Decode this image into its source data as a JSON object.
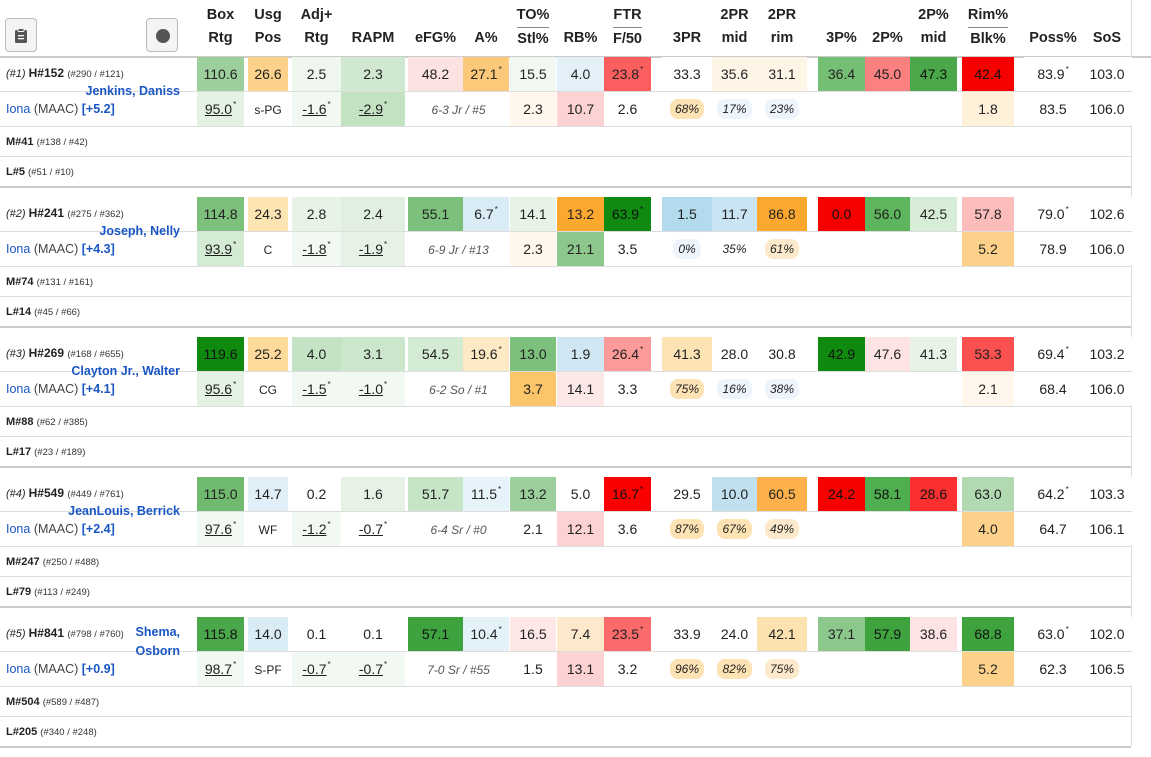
{
  "toolbar": {
    "clipboard_icon": "clipboard-icon",
    "record_icon": "record-icon"
  },
  "headers": [
    {
      "top": "Box",
      "bottom": "Rtg"
    },
    {
      "top": "Usg",
      "bottom": "Pos"
    },
    {
      "top": "Adj+",
      "bottom": "Rtg"
    },
    {
      "top": "",
      "bottom": "RAPM"
    },
    {
      "top": "",
      "bottom": "eFG%"
    },
    {
      "top": "",
      "bottom": "A%"
    },
    {
      "top": "TO%",
      "bottom": "Stl%"
    },
    {
      "top": "",
      "bottom": "RB%"
    },
    {
      "top": "FTR",
      "bottom": "F/50"
    },
    {
      "top": "",
      "bottom": "3PR"
    },
    {
      "top": "2PR",
      "bottom": "mid"
    },
    {
      "top": "2PR",
      "bottom": "rim"
    },
    {
      "top": "",
      "bottom": "3P%"
    },
    {
      "top": "",
      "bottom": "2P%"
    },
    {
      "top": "2P%",
      "bottom": "mid"
    },
    {
      "top": "Rim%",
      "bottom": "Blk%"
    },
    {
      "top": "",
      "bottom": "Poss%"
    },
    {
      "top": "",
      "bottom": "SoS"
    }
  ],
  "players": [
    {
      "rank": "(#1)",
      "hrank": "H#152",
      "hsub": "(#290 / #121)",
      "name": "Jenkins, Daniss",
      "team": "Iona",
      "conf": "(MAAC)",
      "plus": "[+5.2]",
      "m": "M#41",
      "msub": "(#138 / #42)",
      "l": "L#5",
      "lsub": "(#51 / #10)",
      "r1": [
        "110.6",
        "26.6",
        "2.5",
        "2.3",
        "48.2",
        "27.1",
        "15.5",
        "4.0",
        "23.8",
        "33.3",
        "35.6",
        "31.1",
        "36.4",
        "45.0",
        "47.3",
        "42.4",
        "83.9",
        "103.0"
      ],
      "r1star": [
        false,
        false,
        false,
        false,
        false,
        true,
        false,
        false,
        true,
        false,
        false,
        false,
        false,
        false,
        false,
        false,
        true,
        false
      ],
      "r2": [
        "95.0",
        "s-PG",
        "-1.6",
        "-2.9",
        "6-3 Jr / #5",
        "",
        "2.3",
        "10.7",
        "2.6",
        "68%",
        "17%",
        "23%",
        "",
        "",
        "",
        "1.8",
        "83.5",
        "106.0"
      ],
      "r2star": [
        true,
        false,
        true,
        true,
        false,
        false,
        false,
        false,
        false,
        false,
        false,
        false,
        false,
        false,
        false,
        false,
        false,
        false
      ]
    },
    {
      "rank": "(#2)",
      "hrank": "H#241",
      "hsub": "(#275 / #362)",
      "name": "Joseph, Nelly",
      "team": "Iona",
      "conf": "(MAAC)",
      "plus": "[+4.3]",
      "m": "M#74",
      "msub": "(#131 / #161)",
      "l": "L#14",
      "lsub": "(#45 / #66)",
      "r1": [
        "114.8",
        "24.3",
        "2.8",
        "2.4",
        "55.1",
        "6.7",
        "14.1",
        "13.2",
        "63.9",
        "1.5",
        "11.7",
        "86.8",
        "0.0",
        "56.0",
        "42.5",
        "57.8",
        "79.0",
        "102.6"
      ],
      "r1star": [
        false,
        false,
        false,
        false,
        false,
        true,
        false,
        false,
        true,
        false,
        false,
        false,
        false,
        false,
        false,
        false,
        true,
        false
      ],
      "r2": [
        "93.9",
        "C",
        "-1.8",
        "-1.9",
        "6-9 Jr / #13",
        "",
        "2.3",
        "21.1",
        "3.5",
        "0%",
        "35%",
        "61%",
        "",
        "",
        "",
        "5.2",
        "78.9",
        "106.0"
      ],
      "r2star": [
        true,
        false,
        true,
        true,
        false,
        false,
        false,
        false,
        false,
        false,
        false,
        false,
        false,
        false,
        false,
        false,
        false,
        false
      ]
    },
    {
      "rank": "(#3)",
      "hrank": "H#269",
      "hsub": "(#168 / #655)",
      "name": "Clayton Jr., Walter",
      "team": "Iona",
      "conf": "(MAAC)",
      "plus": "[+4.1]",
      "m": "M#88",
      "msub": "(#62 / #385)",
      "l": "L#17",
      "lsub": "(#23 / #189)",
      "r1": [
        "119.6",
        "25.2",
        "4.0",
        "3.1",
        "54.5",
        "19.6",
        "13.0",
        "1.9",
        "26.4",
        "41.3",
        "28.0",
        "30.8",
        "42.9",
        "47.6",
        "41.3",
        "53.3",
        "69.4",
        "103.2"
      ],
      "r1star": [
        false,
        false,
        false,
        false,
        false,
        true,
        false,
        false,
        true,
        false,
        false,
        false,
        false,
        false,
        false,
        false,
        true,
        false
      ],
      "r2": [
        "95.6",
        "CG",
        "-1.5",
        "-1.0",
        "6-2 So / #1",
        "",
        "3.7",
        "14.1",
        "3.3",
        "75%",
        "16%",
        "38%",
        "",
        "",
        "",
        "2.1",
        "68.4",
        "106.0"
      ],
      "r2star": [
        true,
        false,
        true,
        true,
        false,
        false,
        false,
        false,
        false,
        false,
        false,
        false,
        false,
        false,
        false,
        false,
        false,
        false
      ]
    },
    {
      "rank": "(#4)",
      "hrank": "H#549",
      "hsub": "(#449 / #761)",
      "name": "JeanLouis, Berrick",
      "team": "Iona",
      "conf": "(MAAC)",
      "plus": "[+2.4]",
      "m": "M#247",
      "msub": "(#250 / #488)",
      "l": "L#79",
      "lsub": "(#113 / #249)",
      "r1": [
        "115.0",
        "14.7",
        "0.2",
        "1.6",
        "51.7",
        "11.5",
        "13.2",
        "5.0",
        "16.7",
        "29.5",
        "10.0",
        "60.5",
        "24.2",
        "58.1",
        "28.6",
        "63.0",
        "64.2",
        "103.3"
      ],
      "r1star": [
        false,
        false,
        false,
        false,
        false,
        true,
        false,
        false,
        true,
        false,
        false,
        false,
        false,
        false,
        false,
        false,
        true,
        false
      ],
      "r2": [
        "97.6",
        "WF",
        "-1.2",
        "-0.7",
        "6-4 Sr / #0",
        "",
        "2.1",
        "12.1",
        "3.6",
        "87%",
        "67%",
        "49%",
        "",
        "",
        "",
        "4.0",
        "64.7",
        "106.1"
      ],
      "r2star": [
        true,
        false,
        true,
        true,
        false,
        false,
        false,
        false,
        false,
        false,
        false,
        false,
        false,
        false,
        false,
        false,
        false,
        false
      ]
    },
    {
      "rank": "(#5)",
      "hrank": "H#841",
      "hsub": "(#798 / #760)",
      "name": "Shema, Osborn",
      "team": "Iona",
      "conf": "(MAAC)",
      "plus": "[+0.9]",
      "m": "M#504",
      "msub": "(#589 / #487)",
      "l": "L#205",
      "lsub": "(#340 / #248)",
      "r1": [
        "115.8",
        "14.0",
        "0.1",
        "0.1",
        "57.1",
        "10.4",
        "16.5",
        "7.4",
        "23.5",
        "33.9",
        "24.0",
        "42.1",
        "37.1",
        "57.9",
        "38.6",
        "68.8",
        "63.0",
        "102.0"
      ],
      "r1star": [
        false,
        false,
        false,
        false,
        false,
        true,
        false,
        false,
        true,
        false,
        false,
        false,
        false,
        false,
        false,
        false,
        true,
        false
      ],
      "r2": [
        "98.7",
        "S-PF",
        "-0.7",
        "-0.7",
        "7-0 Sr / #55",
        "",
        "1.5",
        "13.1",
        "3.2",
        "96%",
        "82%",
        "75%",
        "",
        "",
        "",
        "5.2",
        "62.3",
        "106.5"
      ],
      "r2star": [
        true,
        false,
        true,
        true,
        false,
        false,
        false,
        false,
        false,
        false,
        false,
        false,
        false,
        false,
        false,
        false,
        false,
        false
      ]
    }
  ],
  "colors": {
    "r1": [
      [
        "#9ccf9c",
        "#fcd28a",
        "#eef6ee",
        "#cfe8cf",
        "#fde2e2",
        "#fcc87a",
        "#f1f8f1",
        "#e3f0f8",
        "#fb5e5e",
        "#ffffff",
        "#fff5e6",
        "#fff5e6",
        "#74bf74",
        "#fb8080",
        "#4aa84a",
        "#f70000",
        "#ffffff",
        "#ffffff"
      ],
      [
        "#7cc07c",
        "#fde5b3",
        "#e7f3e7",
        "#e0efe0",
        "#7cc07c",
        "#d9ebf5",
        "#e7f3e7",
        "#fca82e",
        "#118a11",
        "#b4dbed",
        "#c9e4f2",
        "#fca82e",
        "#f70000",
        "#5db55d",
        "#d8edd8",
        "#fcbcbc",
        "#ffffff",
        "#ffffff"
      ],
      [
        "#0f8a0f",
        "#fdd99a",
        "#c4e3c4",
        "#cce6cc",
        "#d3ebd3",
        "#fde9c4",
        "#7cc07c",
        "#d0e6f3",
        "#fc9a9a",
        "#fde3b3",
        "#ffffff",
        "#ffffff",
        "#0f8a0f",
        "#fde3e3",
        "#e7f3e7",
        "#fb5050",
        "#ffffff",
        "#ffffff"
      ],
      [
        "#6fba6f",
        "#e0eff7",
        "#ffffff",
        "#e5f2e5",
        "#c6e4c6",
        "#e7f3fa",
        "#9ccf9c",
        "#ffffff",
        "#fa0000",
        "#ffffff",
        "#c0e0f0",
        "#fcb14a",
        "#f70000",
        "#4fae4f",
        "#fa3030",
        "#b2dab2",
        "#ffffff",
        "#ffffff"
      ],
      [
        "#4aa84a",
        "#d9ecf6",
        "#ffffff",
        "#ffffff",
        "#3ea33e",
        "#e3f1f9",
        "#fde7e7",
        "#fde8cc",
        "#fa6a6a",
        "#ffffff",
        "#ffffff",
        "#fde2b0",
        "#8cc78c",
        "#3ea33e",
        "#fde3e3",
        "#3ea33e",
        "#ffffff",
        "#ffffff"
      ]
    ],
    "r2": [
      [
        "#e4f2e4",
        "#ffffff",
        "#f2f9f2",
        "#c2e2c2",
        "#ffffff",
        "#ffffff",
        "#fff7ec",
        "#fdd2d2",
        "#ffffff",
        "#ffffff",
        "#ffffff",
        "#ffffff",
        "#ffffff",
        "#ffffff",
        "#ffffff",
        "#fff0da",
        "#ffffff",
        "#ffffff"
      ],
      [
        "#d3ebd3",
        "#ffffff",
        "#f2f9f2",
        "#e5f2e5",
        "#ffffff",
        "#ffffff",
        "#fff7ec",
        "#8cc78c",
        "#ffffff",
        "#ffffff",
        "#ffffff",
        "#ffffff",
        "#ffffff",
        "#ffffff",
        "#ffffff",
        "#fdd18a",
        "#ffffff",
        "#ffffff"
      ],
      [
        "#e4f2e4",
        "#ffffff",
        "#f2f9f2",
        "#f2f9f2",
        "#ffffff",
        "#ffffff",
        "#fcc56a",
        "#fde8e8",
        "#ffffff",
        "#ffffff",
        "#ffffff",
        "#ffffff",
        "#ffffff",
        "#ffffff",
        "#ffffff",
        "#fff7ec",
        "#ffffff",
        "#ffffff"
      ],
      [
        "#f2f9f2",
        "#ffffff",
        "#f2f9f2",
        "#ffffff",
        "#ffffff",
        "#ffffff",
        "#ffffff",
        "#fdd2d2",
        "#ffffff",
        "#ffffff",
        "#ffffff",
        "#ffffff",
        "#ffffff",
        "#ffffff",
        "#ffffff",
        "#fdd18a",
        "#ffffff",
        "#ffffff"
      ],
      [
        "#f2f9f2",
        "#ffffff",
        "#f2f9f2",
        "#f2f9f2",
        "#ffffff",
        "#ffffff",
        "#ffffff",
        "#fdd2d2",
        "#ffffff",
        "#ffffff",
        "#ffffff",
        "#ffffff",
        "#ffffff",
        "#ffffff",
        "#ffffff",
        "#fdd18a",
        "#ffffff",
        "#ffffff"
      ]
    ],
    "pill": [
      [
        "#fde3b3",
        "#edf4fb",
        "#edf4fb"
      ],
      [
        "#edf4fb",
        "#ffffff",
        "#fdeacc"
      ],
      [
        "#fde3b3",
        "#edf4fb",
        "#edf4fb"
      ],
      [
        "#fde3b3",
        "#fde3b3",
        "#fdeacc"
      ],
      [
        "#fde3b3",
        "#fde3b3",
        "#fdeacc"
      ]
    ]
  }
}
